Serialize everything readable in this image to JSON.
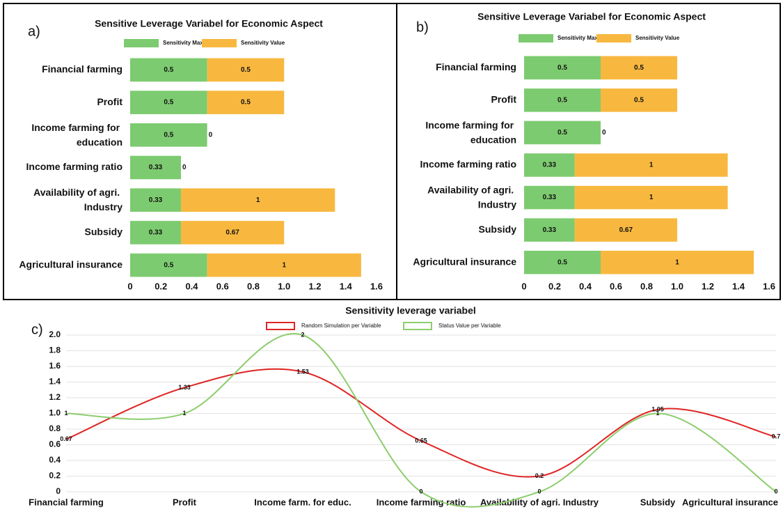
{
  "chart_data": [
    {
      "type": "bar",
      "orientation": "horizontal",
      "stacked": true,
      "label": "a)",
      "title": "Sensitive Leverage Variabel for Economic Aspect",
      "categories": [
        "Financial farming",
        "Profit",
        "Income farming for education",
        "Income farming ratio",
        "Availability of agri. Industry",
        "Subsidy",
        "Agricultural insurance"
      ],
      "series": [
        {
          "name": "Sensitivity Max",
          "color": "#7dcb70",
          "values": [
            0.5,
            0.5,
            0.5,
            0.33,
            0.33,
            0.33,
            0.5
          ]
        },
        {
          "name": "Sensitivity Value",
          "color": "#f8b83f",
          "values": [
            0.5,
            0.5,
            0,
            0,
            1,
            0.67,
            1
          ]
        }
      ],
      "xlim": [
        0,
        1.6
      ],
      "xticks": [
        0,
        0.2,
        0.4,
        0.6,
        0.8,
        {
          "value": 1,
          "label": "1.0"
        },
        1.2,
        1.4,
        1.6
      ],
      "grid": false
    },
    {
      "type": "bar",
      "orientation": "horizontal",
      "stacked": true,
      "label": "b)",
      "title": "Sensitive Leverage Variabel for Economic Aspect",
      "categories": [
        "Financial farming",
        "Profit",
        "Income farming for education",
        "Income farming ratio",
        "Availability of agri. Industry",
        "Subsidy",
        "Agricultural insurance"
      ],
      "series": [
        {
          "name": "Sensitivity Max",
          "color": "#7dcb70",
          "values": [
            0.5,
            0.5,
            0.5,
            0.33,
            0.33,
            0.33,
            0.5
          ]
        },
        {
          "name": "Sensitivity Value",
          "color": "#f8b83f",
          "values": [
            0.5,
            0.5,
            0,
            1,
            1,
            0.67,
            1
          ]
        }
      ],
      "xlim": [
        0,
        1.6
      ],
      "xticks": [
        0,
        0.2,
        0.4,
        0.6,
        0.8,
        {
          "value": 1,
          "label": "1.0"
        },
        1.2,
        1.4,
        1.6
      ],
      "grid": false
    },
    {
      "type": "line",
      "smooth": true,
      "label": "c)",
      "title": "Sensitivity leverage variabel",
      "categories": [
        "Financial farming",
        "Profit",
        "Income farm. for educ.",
        "Income farming ratio",
        "Availability of agri. Industry",
        "Subsidy",
        "Agricultural insurance"
      ],
      "series": [
        {
          "name": "Random Simulation per Variable",
          "color": "#e02424",
          "values": [
            0.67,
            1.33,
            1.53,
            0.65,
            0.2,
            1.05,
            0.7
          ]
        },
        {
          "name": "Status Value per Variable",
          "color": "#8ccd6c",
          "values": [
            1,
            1,
            2,
            0,
            0,
            1,
            0
          ]
        }
      ],
      "ylim": [
        0,
        2
      ],
      "yticks": [
        0,
        0.2,
        0.4,
        0.6,
        0.8,
        {
          "value": 1,
          "label": "1.0"
        },
        1.2,
        1.4,
        1.6,
        1.8,
        {
          "value": 2,
          "label": "2.0"
        }
      ],
      "grid": true
    }
  ]
}
